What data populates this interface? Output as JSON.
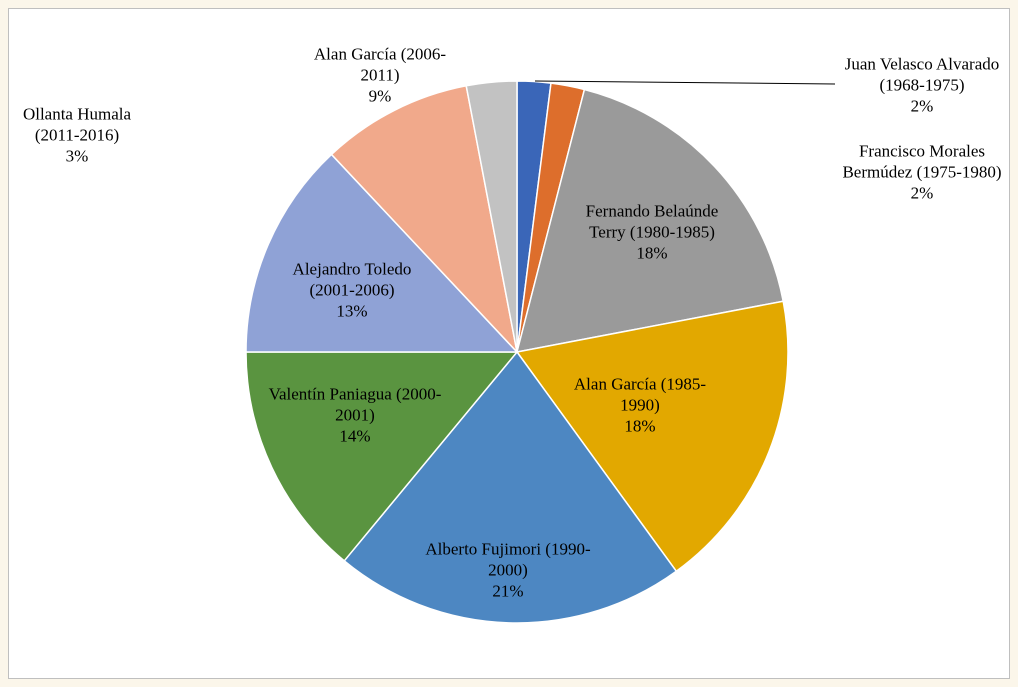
{
  "chart_data": {
    "type": "pie",
    "categories": [
      "Juan Velasco Alvarado (1968-1975)",
      "Francisco Morales Bermúdez (1975-1980)",
      "Fernando Belaúnde Terry (1980-1985)",
      "Alan García (1985-1990)",
      "Alberto Fujimori (1990-2000)",
      "Valentín Paniagua (2000-2001)",
      "Alejandro Toledo (2001-2006)",
      "Alan García (2006-2011)",
      "Ollanta Humala (2011-2016)"
    ],
    "values": [
      2,
      2,
      18,
      18,
      21,
      14,
      13,
      9,
      3
    ],
    "value_labels": [
      "2%",
      "2%",
      "18%",
      "18%",
      "21%",
      "14%",
      "13%",
      "9%",
      "3%"
    ],
    "colors": [
      "#3a66b8",
      "#dd6e2c",
      "#9a9a9a",
      "#e2a800",
      "#4d87c2",
      "#5a9440",
      "#8fa2d6",
      "#f1a98b",
      "#c2c2c2"
    ]
  }
}
